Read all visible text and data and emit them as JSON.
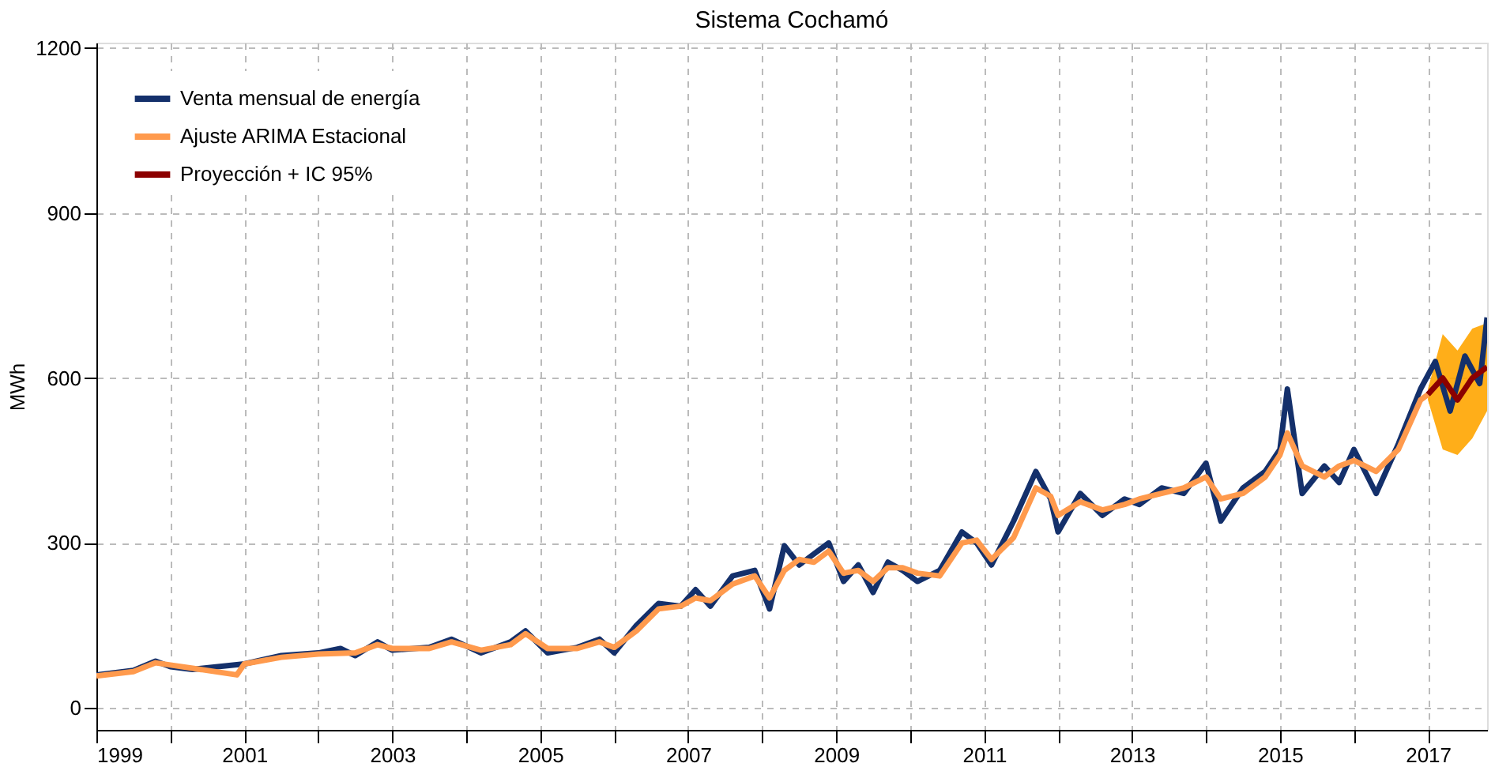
{
  "chart_data": {
    "type": "line",
    "title": "Sistema Cochamó",
    "ylabel": "MWh",
    "xlim": [
      1999,
      2017.8
    ],
    "ylim": [
      -40,
      1210
    ],
    "xticks": [
      1999,
      {
        "value": 2000,
        "label": null
      },
      2001,
      {
        "value": 2002,
        "label": null
      },
      2003,
      {
        "value": 2004,
        "label": null
      },
      2005,
      {
        "value": 2006,
        "label": null
      },
      2007,
      {
        "value": 2008,
        "label": null
      },
      2009,
      {
        "value": 2010,
        "label": null
      },
      2011,
      {
        "value": 2012,
        "label": null
      },
      2013,
      {
        "value": 2014,
        "label": null
      },
      2015,
      {
        "value": 2016,
        "label": null
      },
      2017
    ],
    "yticks": [
      0,
      300,
      600,
      900,
      1200
    ],
    "grid": true,
    "legend": "top left",
    "series": [
      {
        "name": "Venta mensual de energía",
        "color": "#14306b",
        "x": [
          1999.0,
          1999.5,
          1999.8,
          2000.0,
          2000.3,
          2001.0,
          2001.5,
          2002.0,
          2002.3,
          2002.5,
          2002.8,
          2003.0,
          2003.5,
          2003.8,
          2004.2,
          2004.6,
          2004.8,
          2005.1,
          2005.5,
          2005.8,
          2006.0,
          2006.3,
          2006.6,
          2006.9,
          2007.1,
          2007.3,
          2007.6,
          2007.9,
          2008.1,
          2008.3,
          2008.5,
          2008.7,
          2008.9,
          2009.1,
          2009.3,
          2009.5,
          2009.7,
          2009.9,
          2010.1,
          2010.4,
          2010.7,
          2010.9,
          2011.1,
          2011.4,
          2011.7,
          2011.9,
          2012.0,
          2012.3,
          2012.6,
          2012.9,
          2013.1,
          2013.4,
          2013.7,
          2014.0,
          2014.2,
          2014.5,
          2014.8,
          2015.0,
          2015.1,
          2015.3,
          2015.6,
          2015.8,
          2016.0,
          2016.3,
          2016.6,
          2016.9,
          2017.1,
          2017.3,
          2017.5,
          2017.7,
          2017.8
        ],
        "values": [
          60,
          68,
          85,
          75,
          70,
          80,
          95,
          100,
          108,
          95,
          120,
          105,
          110,
          125,
          100,
          120,
          140,
          100,
          110,
          125,
          100,
          150,
          190,
          185,
          215,
          185,
          240,
          250,
          180,
          295,
          260,
          280,
          300,
          230,
          260,
          210,
          265,
          250,
          230,
          250,
          320,
          300,
          260,
          340,
          430,
          380,
          320,
          390,
          350,
          380,
          370,
          400,
          390,
          445,
          340,
          400,
          430,
          470,
          580,
          390,
          440,
          410,
          470,
          390,
          480,
          580,
          630,
          540,
          640,
          590,
          710
        ]
      },
      {
        "name": "Ajuste ARIMA Estacional",
        "color": "#ff9a4d",
        "x": [
          1999.0,
          1999.5,
          1999.8,
          2000.0,
          2000.3,
          2000.9,
          2001.0,
          2001.5,
          2002.0,
          2002.5,
          2002.8,
          2003.0,
          2003.5,
          2003.8,
          2004.2,
          2004.6,
          2004.8,
          2005.1,
          2005.5,
          2005.8,
          2006.0,
          2006.3,
          2006.6,
          2006.9,
          2007.1,
          2007.3,
          2007.6,
          2007.9,
          2008.1,
          2008.3,
          2008.5,
          2008.7,
          2008.9,
          2009.1,
          2009.3,
          2009.5,
          2009.7,
          2009.9,
          2010.1,
          2010.4,
          2010.7,
          2010.9,
          2011.1,
          2011.4,
          2011.7,
          2011.9,
          2012.0,
          2012.3,
          2012.6,
          2012.9,
          2013.1,
          2013.4,
          2013.7,
          2014.0,
          2014.2,
          2014.5,
          2014.8,
          2015.0,
          2015.1,
          2015.3,
          2015.6,
          2015.8,
          2016.0,
          2016.3,
          2016.6,
          2016.9,
          2017.0
        ],
        "values": [
          58,
          66,
          82,
          78,
          72,
          60,
          80,
          92,
          98,
          100,
          115,
          108,
          108,
          120,
          105,
          115,
          135,
          108,
          108,
          120,
          110,
          140,
          180,
          185,
          200,
          195,
          225,
          240,
          200,
          250,
          270,
          265,
          285,
          245,
          250,
          230,
          255,
          255,
          245,
          240,
          300,
          305,
          270,
          310,
          400,
          385,
          350,
          375,
          360,
          370,
          380,
          390,
          400,
          420,
          380,
          390,
          420,
          460,
          500,
          440,
          420,
          440,
          450,
          430,
          470,
          560,
          570
        ]
      },
      {
        "name": "Proyección + IC 95%",
        "color": "#8b0000",
        "x": [
          2017.0,
          2017.2,
          2017.4,
          2017.6,
          2017.8
        ],
        "values": [
          570,
          600,
          560,
          600,
          620
        ],
        "lower": [
          560,
          470,
          460,
          490,
          540
        ],
        "upper": [
          580,
          680,
          650,
          690,
          700
        ]
      }
    ]
  }
}
